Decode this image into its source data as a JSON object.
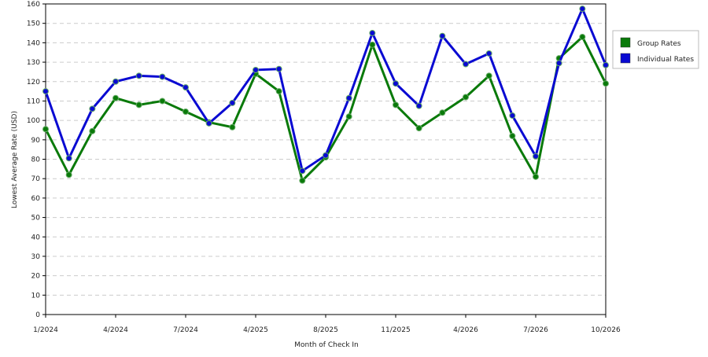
{
  "chart_data": {
    "type": "line",
    "x_label": "Month of Check In",
    "y_label": "Lowest Average Rate (USD)",
    "categories": [
      "1/2024",
      null,
      null,
      "4/2024",
      null,
      null,
      "7/2024",
      null,
      null,
      "4/2025",
      null,
      null,
      "8/2025",
      null,
      null,
      "11/2025",
      null,
      null,
      "4/2026",
      null,
      null,
      "7/2026",
      null,
      null,
      "10/2026"
    ],
    "series": [
      {
        "name": "Group Rates",
        "color": "#0a7a0a",
        "values": [
          95.5,
          72,
          94.5,
          111.5,
          108,
          110,
          104.5,
          99,
          96.5,
          124,
          115,
          69,
          81,
          102,
          139,
          108,
          96,
          104,
          112,
          123,
          92,
          71,
          132,
          143,
          119
        ]
      },
      {
        "name": "Individual Rates",
        "color": "#0a0ad2",
        "values": [
          115,
          80.5,
          106,
          120,
          123,
          122.5,
          117,
          98.5,
          109,
          126,
          126.5,
          74,
          82,
          111.5,
          145,
          119,
          107.5,
          143.5,
          129,
          134.5,
          102.5,
          81.5,
          129.5,
          157.5,
          128.5
        ]
      }
    ],
    "ylim": [
      0,
      160
    ],
    "yticks": [
      0,
      10,
      20,
      30,
      40,
      50,
      60,
      70,
      80,
      90,
      100,
      110,
      120,
      130,
      140,
      150,
      160
    ],
    "grid": true,
    "legend": "right"
  }
}
